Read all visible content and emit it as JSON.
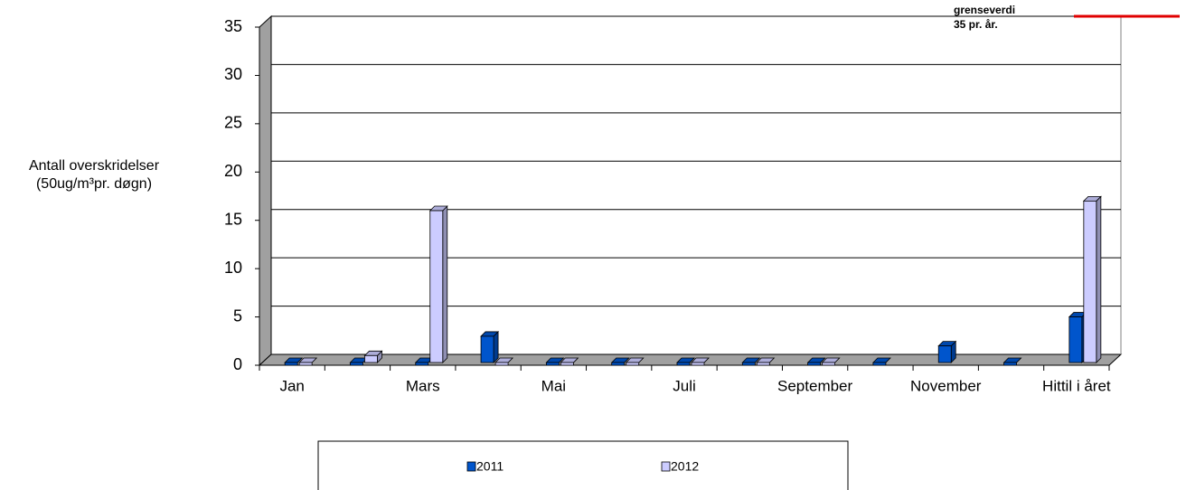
{
  "chart_data": {
    "type": "bar",
    "ylabel": [
      "Antall overskridelser",
      "(50ug/m³pr. døgn)"
    ],
    "annotation": [
      "grenseverdi",
      "35 pr. år."
    ],
    "threshold": {
      "value": 35,
      "color": "#e00000"
    },
    "categories": [
      "Jan",
      null,
      "Mars",
      null,
      "Mai",
      null,
      "Juli",
      null,
      "September",
      null,
      "November",
      null,
      "Hittil i året"
    ],
    "series": [
      {
        "name": "2011",
        "color": "#0055cc",
        "values": [
          0,
          0,
          0,
          3,
          0,
          0,
          0,
          0,
          0,
          0,
          2,
          0,
          5
        ]
      },
      {
        "name": "2012",
        "color": "#ccccff",
        "values": [
          0,
          1,
          16,
          0,
          0,
          0,
          0,
          0,
          0,
          null,
          null,
          null,
          17
        ]
      }
    ],
    "ylim": [
      0,
      35
    ],
    "yticks": [
      0,
      5,
      10,
      15,
      20,
      25,
      30,
      35
    ],
    "grid": true,
    "legend": "bottom"
  }
}
